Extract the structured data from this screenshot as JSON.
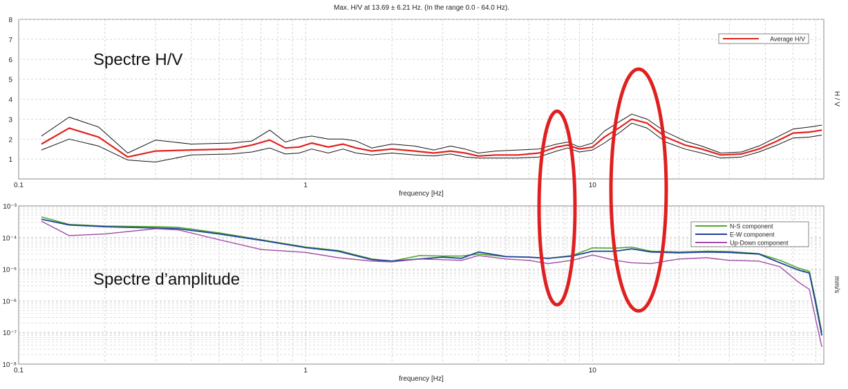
{
  "header": "Max. H/V at 13.69 ± 6.21 Hz. (In the range 0.0 - 64.0 Hz).",
  "annotations": {
    "hv_title": "Spectre H/V",
    "amp_title": "Spectre d’amplitude"
  },
  "colors": {
    "average": "#e0201c",
    "std": "#111111",
    "ns": "#4caa28",
    "ew": "#1f3f9a",
    "ud": "#a24aa8",
    "ellipse": "#e02020",
    "grid": "#c8c8c8"
  },
  "chart_data": [
    {
      "type": "line",
      "xscale": "log",
      "xlim": [
        0.1,
        64
      ],
      "ylim": [
        0,
        8
      ],
      "xlabel": "frequency [Hz]",
      "ylabel": "H / V",
      "x_ticklabels": [
        "0.1",
        "1",
        "10"
      ],
      "y_ticklabels": [
        "1",
        "2",
        "3",
        "4",
        "5",
        "6",
        "7",
        "8"
      ],
      "grid": true,
      "legend": "top-right",
      "series": [
        {
          "name": "Average H/V",
          "role": "average",
          "x": [
            0.12,
            0.15,
            0.19,
            0.24,
            0.3,
            0.4,
            0.55,
            0.65,
            0.75,
            0.85,
            0.95,
            1.05,
            1.2,
            1.35,
            1.5,
            1.7,
            2.0,
            2.4,
            2.8,
            3.2,
            3.6,
            4.0,
            4.6,
            5.5,
            6.5,
            7.5,
            8.2,
            9.0,
            10.0,
            11.0,
            12.5,
            13.7,
            15.5,
            18.0,
            21.0,
            24.0,
            28.0,
            33.0,
            38.0,
            44.0,
            50.0,
            57.0,
            60.0,
            63.0
          ],
          "y": [
            1.75,
            2.55,
            2.1,
            1.1,
            1.4,
            1.45,
            1.5,
            1.7,
            1.95,
            1.55,
            1.6,
            1.8,
            1.6,
            1.75,
            1.55,
            1.4,
            1.5,
            1.4,
            1.3,
            1.4,
            1.3,
            1.15,
            1.2,
            1.2,
            1.3,
            1.6,
            1.7,
            1.5,
            1.6,
            2.1,
            2.6,
            3.0,
            2.8,
            2.1,
            1.7,
            1.5,
            1.2,
            1.25,
            1.5,
            1.9,
            2.3,
            2.35,
            2.4,
            2.45
          ]
        },
        {
          "name": "",
          "role": "upper",
          "x": [
            0.12,
            0.15,
            0.19,
            0.24,
            0.3,
            0.4,
            0.55,
            0.65,
            0.75,
            0.85,
            0.95,
            1.05,
            1.2,
            1.35,
            1.5,
            1.7,
            2.0,
            2.4,
            2.8,
            3.2,
            3.6,
            4.0,
            4.6,
            5.5,
            6.5,
            7.5,
            8.2,
            9.0,
            10.0,
            11.0,
            12.5,
            13.7,
            15.5,
            18.0,
            21.0,
            24.0,
            28.0,
            33.0,
            38.0,
            44.0,
            50.0,
            57.0,
            60.0,
            63.0
          ],
          "y": [
            2.15,
            3.1,
            2.6,
            1.3,
            1.95,
            1.75,
            1.8,
            1.9,
            2.45,
            1.85,
            2.05,
            2.15,
            2.0,
            2.0,
            1.9,
            1.55,
            1.75,
            1.65,
            1.45,
            1.65,
            1.5,
            1.3,
            1.4,
            1.45,
            1.5,
            1.75,
            1.85,
            1.6,
            1.8,
            2.4,
            2.9,
            3.25,
            3.0,
            2.35,
            1.9,
            1.65,
            1.3,
            1.35,
            1.65,
            2.1,
            2.5,
            2.6,
            2.65,
            2.7
          ]
        },
        {
          "name": "",
          "role": "lower",
          "x": [
            0.12,
            0.15,
            0.19,
            0.24,
            0.3,
            0.4,
            0.55,
            0.65,
            0.75,
            0.85,
            0.95,
            1.05,
            1.2,
            1.35,
            1.5,
            1.7,
            2.0,
            2.4,
            2.8,
            3.2,
            3.6,
            4.0,
            4.6,
            5.5,
            6.5,
            7.5,
            8.2,
            9.0,
            10.0,
            11.0,
            12.5,
            13.7,
            15.5,
            18.0,
            21.0,
            24.0,
            28.0,
            33.0,
            38.0,
            44.0,
            50.0,
            57.0,
            60.0,
            63.0
          ],
          "y": [
            1.45,
            2.0,
            1.65,
            0.95,
            0.85,
            1.2,
            1.25,
            1.35,
            1.55,
            1.25,
            1.3,
            1.5,
            1.3,
            1.5,
            1.3,
            1.2,
            1.3,
            1.2,
            1.15,
            1.25,
            1.1,
            1.05,
            1.05,
            1.05,
            1.1,
            1.4,
            1.55,
            1.35,
            1.45,
            1.8,
            2.35,
            2.8,
            2.55,
            1.85,
            1.5,
            1.3,
            1.05,
            1.1,
            1.35,
            1.7,
            2.05,
            2.1,
            2.15,
            2.2
          ]
        }
      ]
    },
    {
      "type": "line",
      "xscale": "log",
      "yscale": "log",
      "xlim": [
        0.1,
        64
      ],
      "ylim": [
        1e-08,
        0.001
      ],
      "xlabel": "frequency [Hz]",
      "ylabel": "mm/s",
      "x_ticklabels": [
        "0.1",
        "1",
        "10"
      ],
      "y_ticklabels": [
        "10⁻³",
        "10⁻⁴",
        "10⁻⁵",
        "10⁻⁶",
        "10⁻⁷",
        "10⁻⁸"
      ],
      "grid": true,
      "legend": "top-right",
      "series": [
        {
          "name": "N-S component",
          "role": "ns",
          "x": [
            0.12,
            0.15,
            0.2,
            0.3,
            0.36,
            0.5,
            0.7,
            1.0,
            1.3,
            1.7,
            2.0,
            2.5,
            3.0,
            3.5,
            4.0,
            5.0,
            6.0,
            7.0,
            8.5,
            10.0,
            12.0,
            13.7,
            16.0,
            20.0,
            25.0,
            30.0,
            38.0,
            45.0,
            52.0,
            57.0,
            60.0,
            63.0
          ],
          "y": [
            0.00045,
            0.00026,
            0.00023,
            0.00022,
            0.00021,
            0.00014,
            8.5e-05,
            5e-05,
            3.9e-05,
            2.1e-05,
            1.8e-05,
            2.7e-05,
            2.6e-05,
            2.6e-05,
            3e-05,
            2.5e-05,
            2.4e-05,
            2.2e-05,
            2.7e-05,
            4.7e-05,
            4.6e-05,
            5e-05,
            3.7e-05,
            3.5e-05,
            3.7e-05,
            3.6e-05,
            3.1e-05,
            1.9e-05,
            1.1e-05,
            8.5e-06,
            1e-06,
            1e-07
          ]
        },
        {
          "name": "E-W component",
          "role": "ew",
          "x": [
            0.12,
            0.15,
            0.2,
            0.3,
            0.36,
            0.5,
            0.7,
            1.0,
            1.3,
            1.7,
            2.0,
            2.5,
            3.0,
            3.5,
            4.0,
            5.0,
            6.0,
            7.0,
            8.5,
            10.0,
            12.0,
            13.7,
            16.0,
            20.0,
            25.0,
            30.0,
            38.0,
            45.0,
            52.0,
            57.0,
            60.0,
            63.0
          ],
          "y": [
            0.00038,
            0.00025,
            0.00022,
            0.0002,
            0.00019,
            0.00013,
            8.2e-05,
            4.8e-05,
            3.7e-05,
            2e-05,
            1.8e-05,
            2.1e-05,
            2.4e-05,
            2.2e-05,
            3.5e-05,
            2.5e-05,
            2.4e-05,
            2.2e-05,
            2.6e-05,
            3.7e-05,
            3.7e-05,
            4.4e-05,
            3.5e-05,
            3.3e-05,
            3.5e-05,
            3.4e-05,
            3e-05,
            1.6e-05,
            9.5e-06,
            7.5e-06,
            8e-07,
            8e-08
          ]
        },
        {
          "name": "Up-Down component",
          "role": "ud",
          "x": [
            0.12,
            0.15,
            0.2,
            0.3,
            0.36,
            0.5,
            0.7,
            1.0,
            1.3,
            1.7,
            2.0,
            2.5,
            3.0,
            3.5,
            4.0,
            5.0,
            6.0,
            7.0,
            8.5,
            10.0,
            12.0,
            13.7,
            16.0,
            20.0,
            25.0,
            30.0,
            38.0,
            45.0,
            52.0,
            57.0,
            60.0,
            63.0
          ],
          "y": [
            0.00033,
            0.000115,
            0.00013,
            0.00019,
            0.000175,
            8.5e-05,
            4.2e-05,
            3.4e-05,
            2.3e-05,
            1.8e-05,
            1.7e-05,
            2.1e-05,
            2e-05,
            1.9e-05,
            2.7e-05,
            2.1e-05,
            1.9e-05,
            1.5e-05,
            1.9e-05,
            2.8e-05,
            1.9e-05,
            1.6e-05,
            1.5e-05,
            2.1e-05,
            2.3e-05,
            1.9e-05,
            1.8e-05,
            1.2e-05,
            4e-06,
            2.3e-06,
            2.5e-07,
            3.5e-08
          ]
        }
      ]
    }
  ]
}
